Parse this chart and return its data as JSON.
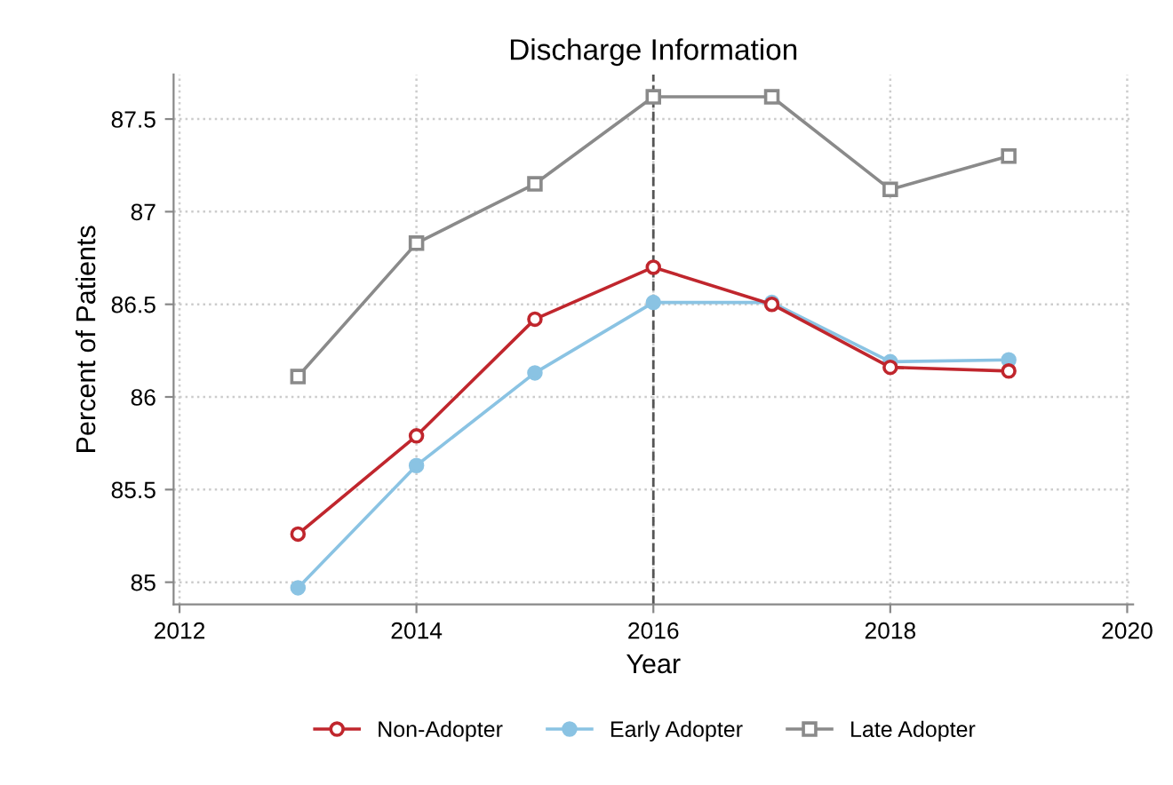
{
  "chart_data": {
    "type": "line",
    "title": "Discharge Information",
    "xlabel": "Year",
    "ylabel": "Percent of Patients",
    "x": [
      2013,
      2014,
      2015,
      2016,
      2017,
      2018,
      2019
    ],
    "series": [
      {
        "name": "Non-Adopter",
        "color": "#c0262d",
        "marker": "circle",
        "values": [
          85.26,
          85.79,
          86.42,
          86.7,
          86.5,
          86.16,
          86.14
        ]
      },
      {
        "name": "Early Adopter",
        "color": "#8ac3e3",
        "marker": "circle",
        "values": [
          84.97,
          85.63,
          86.13,
          86.51,
          86.51,
          86.19,
          86.2
        ]
      },
      {
        "name": "Late Adopter",
        "color": "#8a8a8a",
        "marker": "square",
        "values": [
          86.11,
          86.83,
          87.15,
          87.62,
          87.62,
          87.12,
          87.3
        ]
      }
    ],
    "xlim": [
      2011.95,
      2020.05
    ],
    "xticks": [
      2012,
      2014,
      2016,
      2018,
      2020
    ],
    "ylim": [
      84.88,
      87.74
    ],
    "yticks": [
      85,
      85.5,
      86,
      86.5,
      87,
      87.5
    ],
    "ref_lines": [
      {
        "axis": "x",
        "value": 2016,
        "color": "#555555",
        "line_style": "dashed"
      }
    ],
    "grid": true,
    "legend": "bottom",
    "line_style": "solid"
  }
}
